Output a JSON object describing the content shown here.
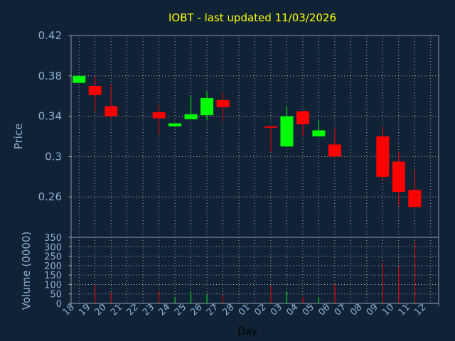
{
  "chart_data": {
    "type": "candlestick",
    "title": "IOBT - last updated 11/03/2026",
    "xlabel": "Day",
    "ylabel": "Price",
    "volume_label": "Volume (0000)",
    "x_ticks": [
      "18",
      "19",
      "20",
      "21",
      "22",
      "23",
      "24",
      "25",
      "26",
      "27",
      "28",
      "01",
      "02",
      "03",
      "04",
      "05",
      "06",
      "07",
      "08",
      "09",
      "10",
      "11",
      "12"
    ],
    "price_axis": {
      "ylim": [
        0.22,
        0.42
      ],
      "ticks": [
        "0.42",
        "0.38",
        "0.34",
        "0.3",
        "0.26"
      ],
      "grid": true
    },
    "volume_axis": {
      "ylim": [
        0,
        350
      ],
      "ticks": [
        "350",
        "300",
        "250",
        "200",
        "150",
        "100",
        "50",
        "0"
      ],
      "grid": true
    },
    "colors": {
      "up": "#00ff00",
      "down": "#ff0000",
      "background": "#0f2236",
      "plot_background": "#0f2236",
      "grid": "#ffffff",
      "title": "#ffff00",
      "axis_text": "#8fb0d0"
    },
    "candles": [
      {
        "x": "18",
        "open": 0.373,
        "high": 0.38,
        "low": 0.373,
        "close": 0.38,
        "volume": 0
      },
      {
        "x": "19",
        "open": 0.37,
        "high": 0.38,
        "low": 0.345,
        "close": 0.361,
        "volume": 100
      },
      {
        "x": "20",
        "open": 0.35,
        "high": 0.372,
        "low": 0.338,
        "close": 0.34,
        "volume": 60
      },
      {
        "x": "23",
        "open": 0.344,
        "high": 0.351,
        "low": 0.322,
        "close": 0.338,
        "volume": 70
      },
      {
        "x": "24",
        "open": 0.33,
        "high": 0.333,
        "low": 0.33,
        "close": 0.333,
        "volume": 30
      },
      {
        "x": "25",
        "open": 0.337,
        "high": 0.36,
        "low": 0.337,
        "close": 0.342,
        "volume": 65
      },
      {
        "x": "26",
        "open": 0.341,
        "high": 0.365,
        "low": 0.336,
        "close": 0.358,
        "volume": 45
      },
      {
        "x": "27",
        "open": 0.356,
        "high": 0.363,
        "low": 0.335,
        "close": 0.349,
        "volume": 45
      },
      {
        "x": "02",
        "open": 0.33,
        "high": 0.33,
        "low": 0.305,
        "close": 0.329,
        "volume": 90
      },
      {
        "x": "03",
        "open": 0.31,
        "high": 0.35,
        "low": 0.31,
        "close": 0.34,
        "volume": 60
      },
      {
        "x": "04",
        "open": 0.345,
        "high": 0.345,
        "low": 0.32,
        "close": 0.332,
        "volume": 35
      },
      {
        "x": "05",
        "open": 0.32,
        "high": 0.336,
        "low": 0.32,
        "close": 0.326,
        "volume": 35
      },
      {
        "x": "06",
        "open": 0.312,
        "high": 0.328,
        "low": 0.3,
        "close": 0.3,
        "volume": 105
      },
      {
        "x": "09",
        "open": 0.32,
        "high": 0.33,
        "low": 0.276,
        "close": 0.28,
        "volume": 215
      },
      {
        "x": "10",
        "open": 0.295,
        "high": 0.305,
        "low": 0.251,
        "close": 0.265,
        "volume": 195
      },
      {
        "x": "11",
        "open": 0.267,
        "high": 0.287,
        "low": 0.249,
        "close": 0.25,
        "volume": 325
      }
    ]
  }
}
